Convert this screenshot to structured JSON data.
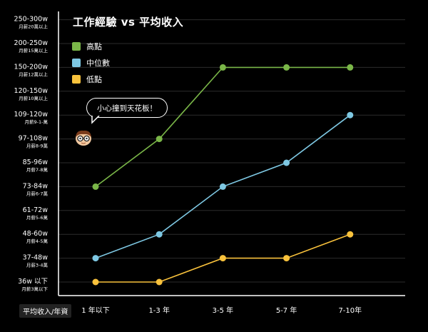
{
  "title": "工作經驗 vs 平均收入",
  "legend": [
    {
      "label": "高點",
      "color": "#7ab648"
    },
    {
      "label": "中位數",
      "color": "#7ec8e3"
    },
    {
      "label": "低點",
      "color": "#f9c23c"
    }
  ],
  "callout": "小心撞到天花板！",
  "x_axis_title": "平均收入/年資",
  "chart_data": {
    "type": "line",
    "categories": [
      "1 年以下",
      "1-3 年",
      "3-5 年",
      "5-7 年",
      "7-10年"
    ],
    "y_ticks": [
      {
        "label": "36w 以下",
        "sub": "月薪3萬以下"
      },
      {
        "label": "37-48w",
        "sub": "月薪3-4萬"
      },
      {
        "label": "48-60w",
        "sub": "月薪4-5萬"
      },
      {
        "label": "61-72w",
        "sub": "月薪5-6萬"
      },
      {
        "label": "73-84w",
        "sub": "月薪6-7萬"
      },
      {
        "label": "85-96w",
        "sub": "月薪7-8萬"
      },
      {
        "label": "97-108w",
        "sub": "月薪8-9萬"
      },
      {
        "label": "109-120w",
        "sub": "月薪9-1-萬"
      },
      {
        "label": "120-150w",
        "sub": "月薪10萬以上"
      },
      {
        "label": "150-200w",
        "sub": "月薪12萬以上"
      },
      {
        "label": "200-250w",
        "sub": "月薪15萬以上"
      },
      {
        "label": "250-300w",
        "sub": "月薪20萬以上"
      }
    ],
    "series": [
      {
        "name": "高點",
        "color": "#7ab648",
        "values": [
          "73-84w",
          "97-108w",
          "150-200w",
          "150-200w",
          "150-200w"
        ]
      },
      {
        "name": "中位數",
        "color": "#7ec8e3",
        "values": [
          "37-48w",
          "48-60w",
          "73-84w",
          "85-96w",
          "109-120w"
        ]
      },
      {
        "name": "低點",
        "color": "#f9c23c",
        "values": [
          "36w 以下",
          "36w 以下",
          "37-48w",
          "37-48w",
          "48-60w"
        ]
      }
    ],
    "grid": true,
    "legend_position": "top-left"
  }
}
